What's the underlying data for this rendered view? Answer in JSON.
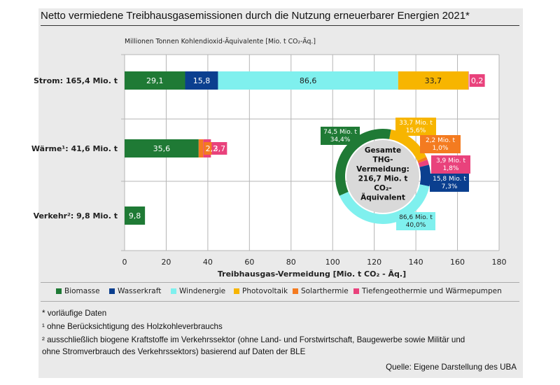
{
  "title": "Netto vermiedene Treibhausgasemissionen durch die Nutzung erneuerbarer Energien 2021*",
  "colors": {
    "Biomasse": "#1f7a35",
    "Wasserkraft": "#0b3f8f",
    "Windenergie": "#7ff0ee",
    "Photovoltaik": "#f7b500",
    "Solarthermie": "#f47b20",
    "Tiefengeothermie und Wärmepumpen": "#e9427c"
  },
  "chart_data": [
    {
      "type": "bar",
      "orientation": "horizontal",
      "stacked": true,
      "title": "",
      "unit_label": "Millionen Tonnen Kohlendioxid-Äquivalente [Mio. t CO₂-Äq.]",
      "xlabel": "Treibhausgas-Vermeidung [Mio. t CO₂ - Äq.]",
      "xlim": [
        0,
        180
      ],
      "xticks": [
        0,
        20,
        40,
        60,
        80,
        100,
        120,
        140,
        160,
        180
      ],
      "grid": true,
      "legend_position": "bottom",
      "categories": [
        "Strom: 165,4 Mio. t",
        "Wärme¹: 41,6 Mio. t",
        "Verkehr²: 9,8 Mio. t"
      ],
      "series": [
        {
          "name": "Biomasse",
          "values": [
            29.1,
            35.6,
            9.8
          ],
          "labels": [
            "29,1",
            "35,6",
            "9,8"
          ]
        },
        {
          "name": "Wasserkraft",
          "values": [
            15.8,
            0,
            0
          ],
          "labels": [
            "15,8",
            "",
            ""
          ]
        },
        {
          "name": "Windenergie",
          "values": [
            86.6,
            0,
            0
          ],
          "labels": [
            "86,6",
            "",
            ""
          ]
        },
        {
          "name": "Photovoltaik",
          "values": [
            33.7,
            0,
            0
          ],
          "labels": [
            "33,7",
            "",
            ""
          ]
        },
        {
          "name": "Solarthermie",
          "values": [
            0,
            2.2,
            0
          ],
          "labels": [
            "",
            "2,2",
            ""
          ]
        },
        {
          "name": "Tiefengeothermie und Wärmepumpen",
          "values": [
            0.2,
            3.7,
            0
          ],
          "labels": [
            "0,2",
            "3,7",
            ""
          ]
        }
      ]
    },
    {
      "type": "pie",
      "donut": true,
      "center_label": [
        "Gesamte",
        "THG-",
        "Vermeidung:",
        "216,7 Mio. t",
        "CO₂-",
        "Äquivalent"
      ],
      "slices": [
        {
          "name": "Biomasse",
          "value": 74.5,
          "percent": 34.4,
          "label_lines": [
            "74,5 Mio. t",
            "34,4%"
          ]
        },
        {
          "name": "Wasserkraft",
          "value": 15.8,
          "percent": 7.3,
          "label_lines": [
            "15,8 Mio. t",
            "7,3%"
          ]
        },
        {
          "name": "Windenergie",
          "value": 86.6,
          "percent": 40.0,
          "label_lines": [
            "86,6 Mio. t",
            "40,0%"
          ]
        },
        {
          "name": "Photovoltaik",
          "value": 33.7,
          "percent": 15.6,
          "label_lines": [
            "33,7 Mio. t",
            "15,6%"
          ]
        },
        {
          "name": "Solarthermie",
          "value": 2.2,
          "percent": 1.0,
          "label_lines": [
            "2,2 Mio. t",
            "1,0%"
          ]
        },
        {
          "name": "Tiefengeothermie und Wärmepumpen",
          "value": 3.9,
          "percent": 1.8,
          "label_lines": [
            "3,9 Mio. t",
            "1,8%"
          ]
        }
      ]
    }
  ],
  "legend": [
    "Biomasse",
    "Wasserkraft",
    "Windenergie",
    "Photovoltaik",
    "Solarthermie",
    "Tiefengeothermie und Wärmepumpen"
  ],
  "notes": [
    "* vorläufige Daten",
    "¹ ohne Berücksichtigung des Holzkohleverbrauchs",
    "² ausschließlich biogene Kraftstoffe im Verkehrssektor (ohne Land- und Forstwirtschaft, Baugewerbe sowie Militär und",
    "ohne Stromverbrauch des Verkehrssektors) basierend auf Daten der BLE"
  ],
  "source": "Quelle: Eigene Darstellung des UBA"
}
